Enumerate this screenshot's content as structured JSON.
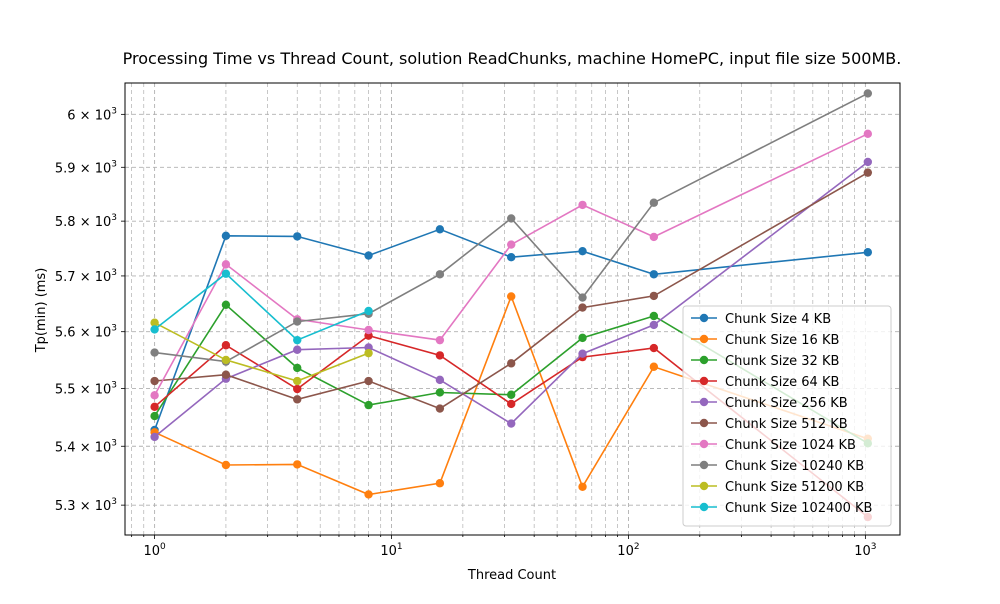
{
  "chart_data": {
    "type": "line",
    "title": "Processing Time vs Thread Count, solution ReadChunks, machine HomePC, input file size 500MB.",
    "xlabel": "Thread Count",
    "ylabel": "Tp(min) (ms)",
    "xscale": "log",
    "yscale": "log",
    "xlim": [
      0.75,
      1400
    ],
    "ylim": [
      5250,
      6060
    ],
    "x_ticks": [
      {
        "value": 1,
        "label": "10",
        "exp": "0"
      },
      {
        "value": 10,
        "label": "10",
        "exp": "1"
      },
      {
        "value": 100,
        "label": "10",
        "exp": "2"
      },
      {
        "value": 1000,
        "label": "10",
        "exp": "3"
      }
    ],
    "y_ticks": [
      {
        "value": 5300,
        "mant": "5.3 × 10",
        "exp": "3"
      },
      {
        "value": 5400,
        "mant": "5.4 × 10",
        "exp": "3"
      },
      {
        "value": 5500,
        "mant": "5.5 × 10",
        "exp": "3"
      },
      {
        "value": 5600,
        "mant": "5.6 × 10",
        "exp": "3"
      },
      {
        "value": 5700,
        "mant": "5.7 × 10",
        "exp": "3"
      },
      {
        "value": 5800,
        "mant": "5.8 × 10",
        "exp": "3"
      },
      {
        "value": 5900,
        "mant": "5.9 × 10",
        "exp": "3"
      },
      {
        "value": 6000,
        "mant": "6 × 10",
        "exp": "3"
      }
    ],
    "grid": true,
    "legend_position": "lower right",
    "series": [
      {
        "name": "Chunk Size 4 KB",
        "color": "#1f77b4",
        "x": [
          1,
          2,
          4,
          8,
          16,
          32,
          64,
          128,
          1024
        ],
        "y": [
          5428,
          5773,
          5772,
          5737,
          5785,
          5734,
          5745,
          5703,
          5743
        ]
      },
      {
        "name": "Chunk Size 16 KB",
        "color": "#ff7f0e",
        "x": [
          1,
          2,
          4,
          8,
          16,
          32,
          64,
          128,
          1024
        ],
        "y": [
          5424,
          5368,
          5369,
          5318,
          5337,
          5663,
          5331,
          5538,
          5413
        ]
      },
      {
        "name": "Chunk Size 32 KB",
        "color": "#2ca02c",
        "x": [
          1,
          2,
          4,
          8,
          16,
          32,
          64,
          128,
          1024
        ],
        "y": [
          5452,
          5648,
          5536,
          5471,
          5493,
          5489,
          5589,
          5628,
          5405
        ]
      },
      {
        "name": "Chunk Size 64 KB",
        "color": "#d62728",
        "x": [
          1,
          2,
          4,
          8,
          16,
          32,
          64,
          128,
          1024
        ],
        "y": [
          5468,
          5576,
          5499,
          5593,
          5558,
          5473,
          5555,
          5571,
          5280
        ]
      },
      {
        "name": "Chunk Size 256 KB",
        "color": "#9467bd",
        "x": [
          1,
          2,
          4,
          8,
          16,
          32,
          64,
          128,
          1024
        ],
        "y": [
          5416,
          5517,
          5568,
          5572,
          5515,
          5439,
          5561,
          5612,
          5910
        ]
      },
      {
        "name": "Chunk Size 512 KB",
        "color": "#8c564b",
        "x": [
          1,
          2,
          4,
          8,
          16,
          32,
          64,
          128,
          1024
        ],
        "y": [
          5513,
          5524,
          5481,
          5513,
          5465,
          5544,
          5643,
          5664,
          5890
        ]
      },
      {
        "name": "Chunk Size 1024 KB",
        "color": "#e377c2",
        "x": [
          1,
          2,
          4,
          8,
          16,
          32,
          64,
          128,
          1024
        ],
        "y": [
          5488,
          5721,
          5622,
          5603,
          5585,
          5757,
          5830,
          5771,
          5963
        ]
      },
      {
        "name": "Chunk Size 10240 KB",
        "color": "#7f7f7f",
        "x": [
          1,
          2,
          4,
          8,
          16,
          32,
          64,
          128,
          1024
        ],
        "y": [
          5563,
          5547,
          5618,
          5632,
          5703,
          5805,
          5661,
          5834,
          6040
        ]
      },
      {
        "name": "Chunk Size 51200 KB",
        "color": "#bcbd22",
        "x": [
          1,
          2,
          4,
          8
        ],
        "y": [
          5616,
          5550,
          5513,
          5562
        ]
      },
      {
        "name": "Chunk Size 102400 KB",
        "color": "#17becf",
        "x": [
          1,
          2,
          4,
          8
        ],
        "y": [
          5604,
          5704,
          5585,
          5637
        ]
      }
    ]
  }
}
